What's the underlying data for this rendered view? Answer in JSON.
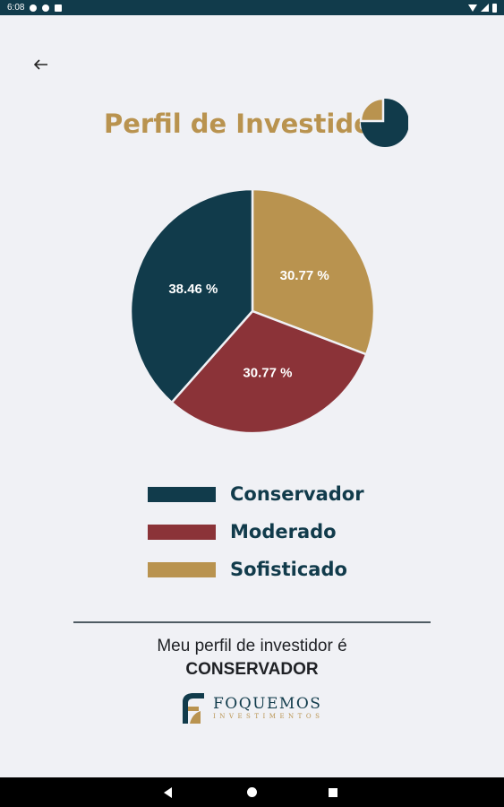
{
  "status_bar": {
    "time": "6:08"
  },
  "header": {
    "title": "Perfil de Investidor"
  },
  "chart_data": {
    "type": "pie",
    "slices": [
      {
        "label": "Conservador",
        "value": 38.46,
        "display": "38.46 %",
        "color": "#113b4b"
      },
      {
        "label": "Moderado",
        "value": 30.77,
        "display": "30.77 %",
        "color": "#8b3338"
      },
      {
        "label": "Sofisticado",
        "value": 30.77,
        "display": "30.77 %",
        "color": "#b9934f"
      }
    ]
  },
  "legend": {
    "items": [
      {
        "label": "Conservador",
        "color": "#113b4b"
      },
      {
        "label": "Moderado",
        "color": "#8b3338"
      },
      {
        "label": "Sofisticado",
        "color": "#b9934f"
      }
    ]
  },
  "result": {
    "prefix": "Meu perfil de investidor é",
    "profile": "CONSERVADOR"
  },
  "brand": {
    "name": "FOQUEMOS",
    "tagline": "INVESTIMENTOS"
  },
  "icons": {
    "back": "arrow-left-icon",
    "title_icon": "pie-chart-icon",
    "nav": [
      "nav-back-icon",
      "nav-home-icon",
      "nav-recents-icon"
    ]
  },
  "colors": {
    "navy": "#113b4b",
    "gold": "#b9934f",
    "red": "#8b3338",
    "background": "#f0f1f5"
  }
}
